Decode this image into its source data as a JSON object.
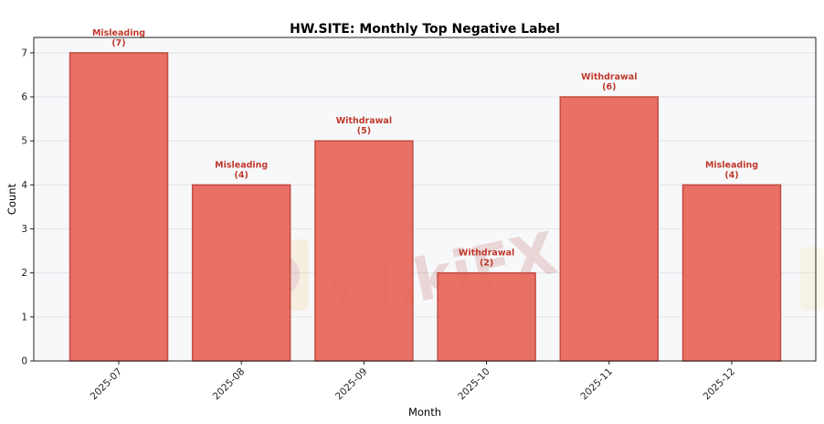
{
  "chart_data": {
    "type": "bar",
    "title": "HW.SITE: Monthly Top Negative Label",
    "xlabel": "Month",
    "ylabel": "Count",
    "categories": [
      "2025-07",
      "2025-08",
      "2025-09",
      "2025-10",
      "2025-11",
      "2025-12"
    ],
    "values": [
      7,
      4,
      5,
      2,
      6,
      4
    ],
    "bar_labels": [
      "Misleading",
      "Misleading",
      "Withdrawal",
      "Withdrawal",
      "Withdrawal",
      "Misleading"
    ],
    "bar_counts": [
      "(7)",
      "(4)",
      "(5)",
      "(2)",
      "(6)",
      "(4)"
    ],
    "ylim": [
      0,
      7.35
    ],
    "yticks": [
      0,
      1,
      2,
      3,
      4,
      5,
      6,
      7
    ],
    "grid": true,
    "legend": "none"
  },
  "colors": {
    "bar_fill": "#e8695c",
    "bar_edge": "#c0453b",
    "annotation": "#c0392b",
    "plot_background": "#f7f8fa",
    "grid": "#e3e5e8"
  },
  "watermark": {
    "text": "WikiFX"
  }
}
